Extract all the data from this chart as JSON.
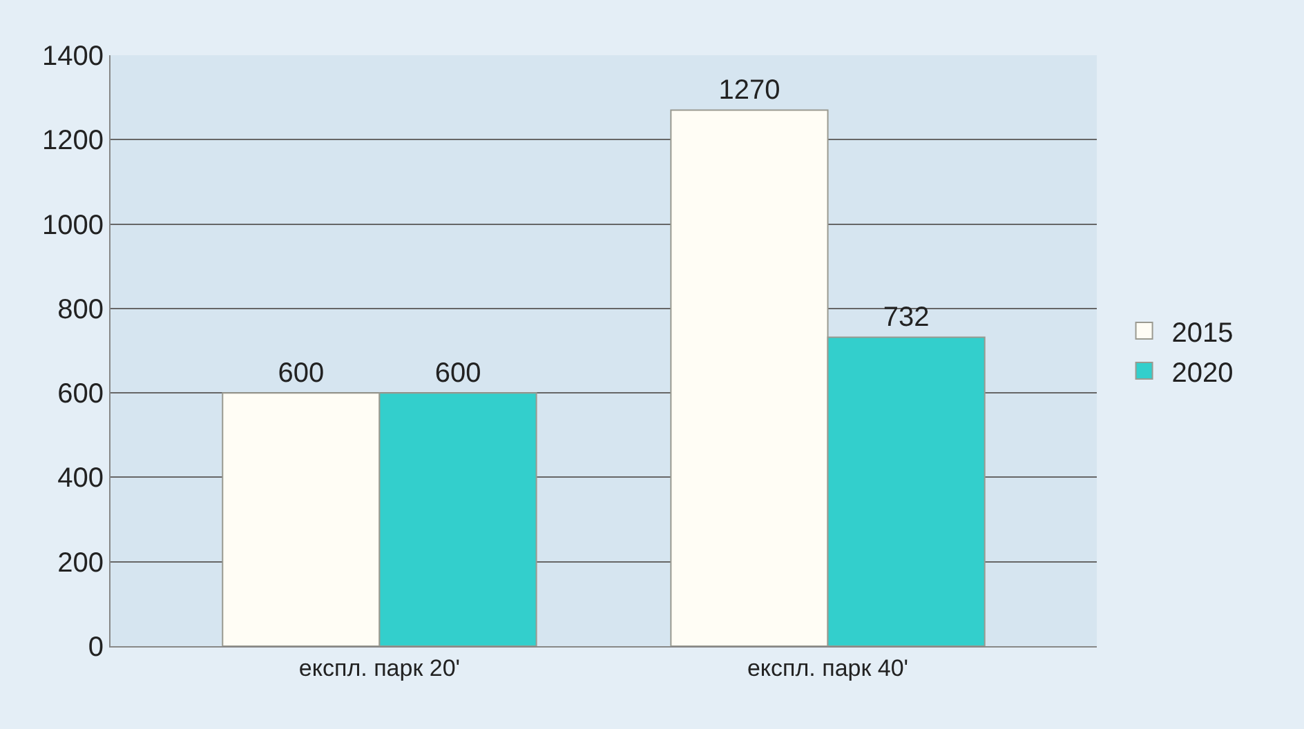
{
  "chart_data": {
    "type": "bar",
    "categories": [
      "експл. парк 20'",
      "експл. парк 40'"
    ],
    "series": [
      {
        "name": "2015",
        "color": "#fffdf5",
        "values": [
          600,
          1270
        ]
      },
      {
        "name": "2020",
        "color": "#33cfcc",
        "values": [
          600,
          732
        ]
      }
    ],
    "ylim": [
      0,
      1400
    ],
    "yticks": [
      0,
      200,
      400,
      600,
      800,
      1000,
      1200,
      1400
    ],
    "grid": "y",
    "legend": "right",
    "data_labels": true
  }
}
